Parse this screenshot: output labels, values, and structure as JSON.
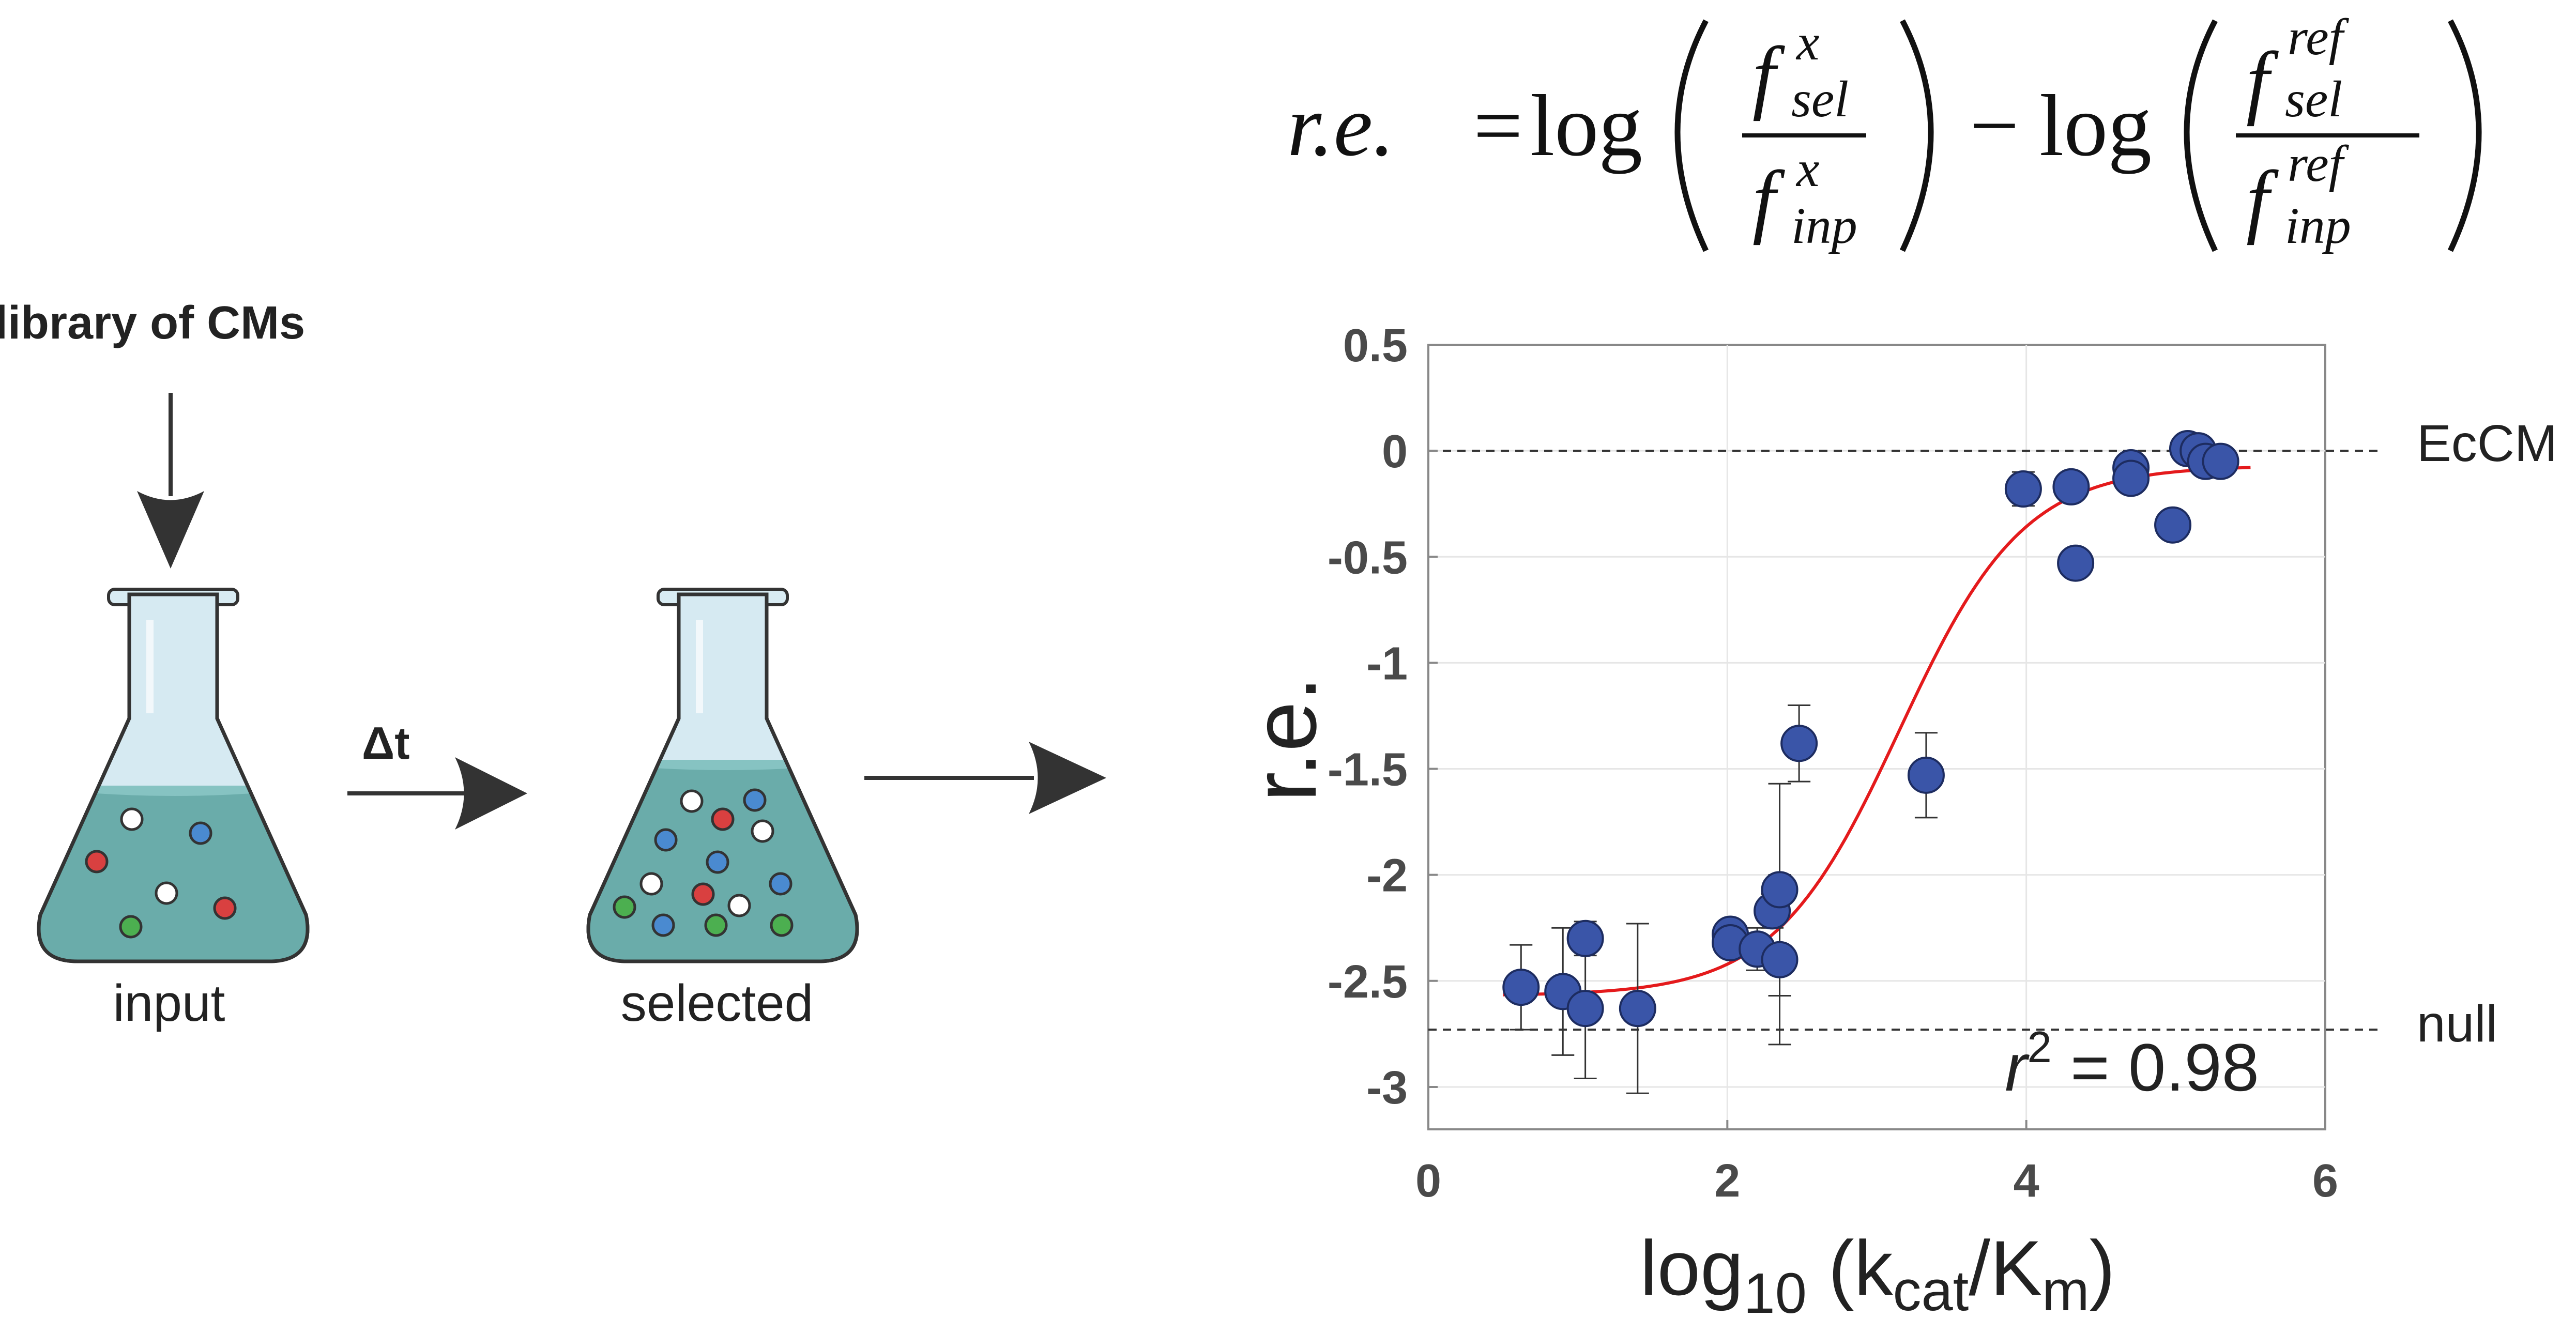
{
  "diagram": {
    "library_label": "library of CMs",
    "delta_label": "Δt",
    "input_label": "input",
    "selected_label": "selected"
  },
  "formula": {
    "lhs": "r.e.",
    "equals": "=",
    "log": "log",
    "minus": "−",
    "f": "f",
    "sup_x": "x",
    "sup_ref": "ref",
    "sub_sel": "sel",
    "sub_inp": "inp"
  },
  "colors": {
    "point_fill": "#3a55a8",
    "point_stroke": "#1d2c60",
    "fit_line": "#e41a1c",
    "liquid": "#6aacaa",
    "glass": "#cfe4ee",
    "marble_red": "#d94040",
    "marble_blue": "#4a8ad0",
    "marble_green": "#4caf50",
    "marble_white": "#ffffff"
  },
  "chart_data": {
    "type": "scatter",
    "xlabel": {
      "prefix": "log",
      "sub10": "10",
      "open": " (k",
      "cat": "cat",
      "slash": "/K",
      "m": "m",
      "close": ")"
    },
    "ylabel": "r.e.",
    "xlim": [
      0,
      6
    ],
    "ylim": [
      -3.2,
      0.5
    ],
    "xticks": [
      0,
      2,
      4,
      6
    ],
    "yticks": [
      0.5,
      0,
      -0.5,
      -1,
      -1.5,
      -2,
      -2.5,
      -3
    ],
    "ytick_labels": [
      "0.5",
      "0",
      "-0.5",
      "-1",
      "-1.5",
      "-2",
      "-2.5",
      "-3"
    ],
    "grid": true,
    "reference_lines": [
      {
        "y": 0,
        "label": "EcCM"
      },
      {
        "y": -2.73,
        "label": "null"
      }
    ],
    "annotation": {
      "r": "r",
      "sup": "2",
      "rest": " = 0.98"
    },
    "fit": {
      "kind": "sigmoid",
      "low": -2.57,
      "high": -0.07,
      "midpoint": 3.15,
      "steepness": 2.4,
      "x_range": [
        0.5,
        5.5
      ]
    },
    "points": [
      {
        "x": 0.62,
        "y": -2.53,
        "err": 0.2
      },
      {
        "x": 0.9,
        "y": -2.55,
        "err": 0.3
      },
      {
        "x": 1.05,
        "y": -2.3,
        "err": 0.08
      },
      {
        "x": 1.05,
        "y": -2.63,
        "err": 0.33
      },
      {
        "x": 1.4,
        "y": -2.63,
        "err": 0.4
      },
      {
        "x": 2.02,
        "y": -2.28,
        "err": 0.05
      },
      {
        "x": 2.02,
        "y": -2.32,
        "err": 0.05
      },
      {
        "x": 2.2,
        "y": -2.35,
        "err": 0.1
      },
      {
        "x": 2.3,
        "y": -2.17,
        "err": 0.08
      },
      {
        "x": 2.35,
        "y": -2.07,
        "err": 0.5
      },
      {
        "x": 2.35,
        "y": -2.4,
        "err": 0.4
      },
      {
        "x": 2.48,
        "y": -1.38,
        "err": 0.18
      },
      {
        "x": 3.33,
        "y": -1.53,
        "err": 0.2
      },
      {
        "x": 3.98,
        "y": -0.18,
        "err": 0.08
      },
      {
        "x": 4.3,
        "y": -0.17,
        "err": 0.05
      },
      {
        "x": 4.33,
        "y": -0.53,
        "err": 0.04
      },
      {
        "x": 4.7,
        "y": -0.08,
        "err": 0.04
      },
      {
        "x": 4.7,
        "y": -0.13,
        "err": 0.04
      },
      {
        "x": 4.98,
        "y": -0.35,
        "err": 0.04
      },
      {
        "x": 5.08,
        "y": 0.01,
        "err": 0.03
      },
      {
        "x": 5.15,
        "y": 0.0,
        "err": 0.03
      },
      {
        "x": 5.2,
        "y": -0.05,
        "err": 0.03
      },
      {
        "x": 5.3,
        "y": -0.05,
        "err": 0.03
      }
    ]
  }
}
